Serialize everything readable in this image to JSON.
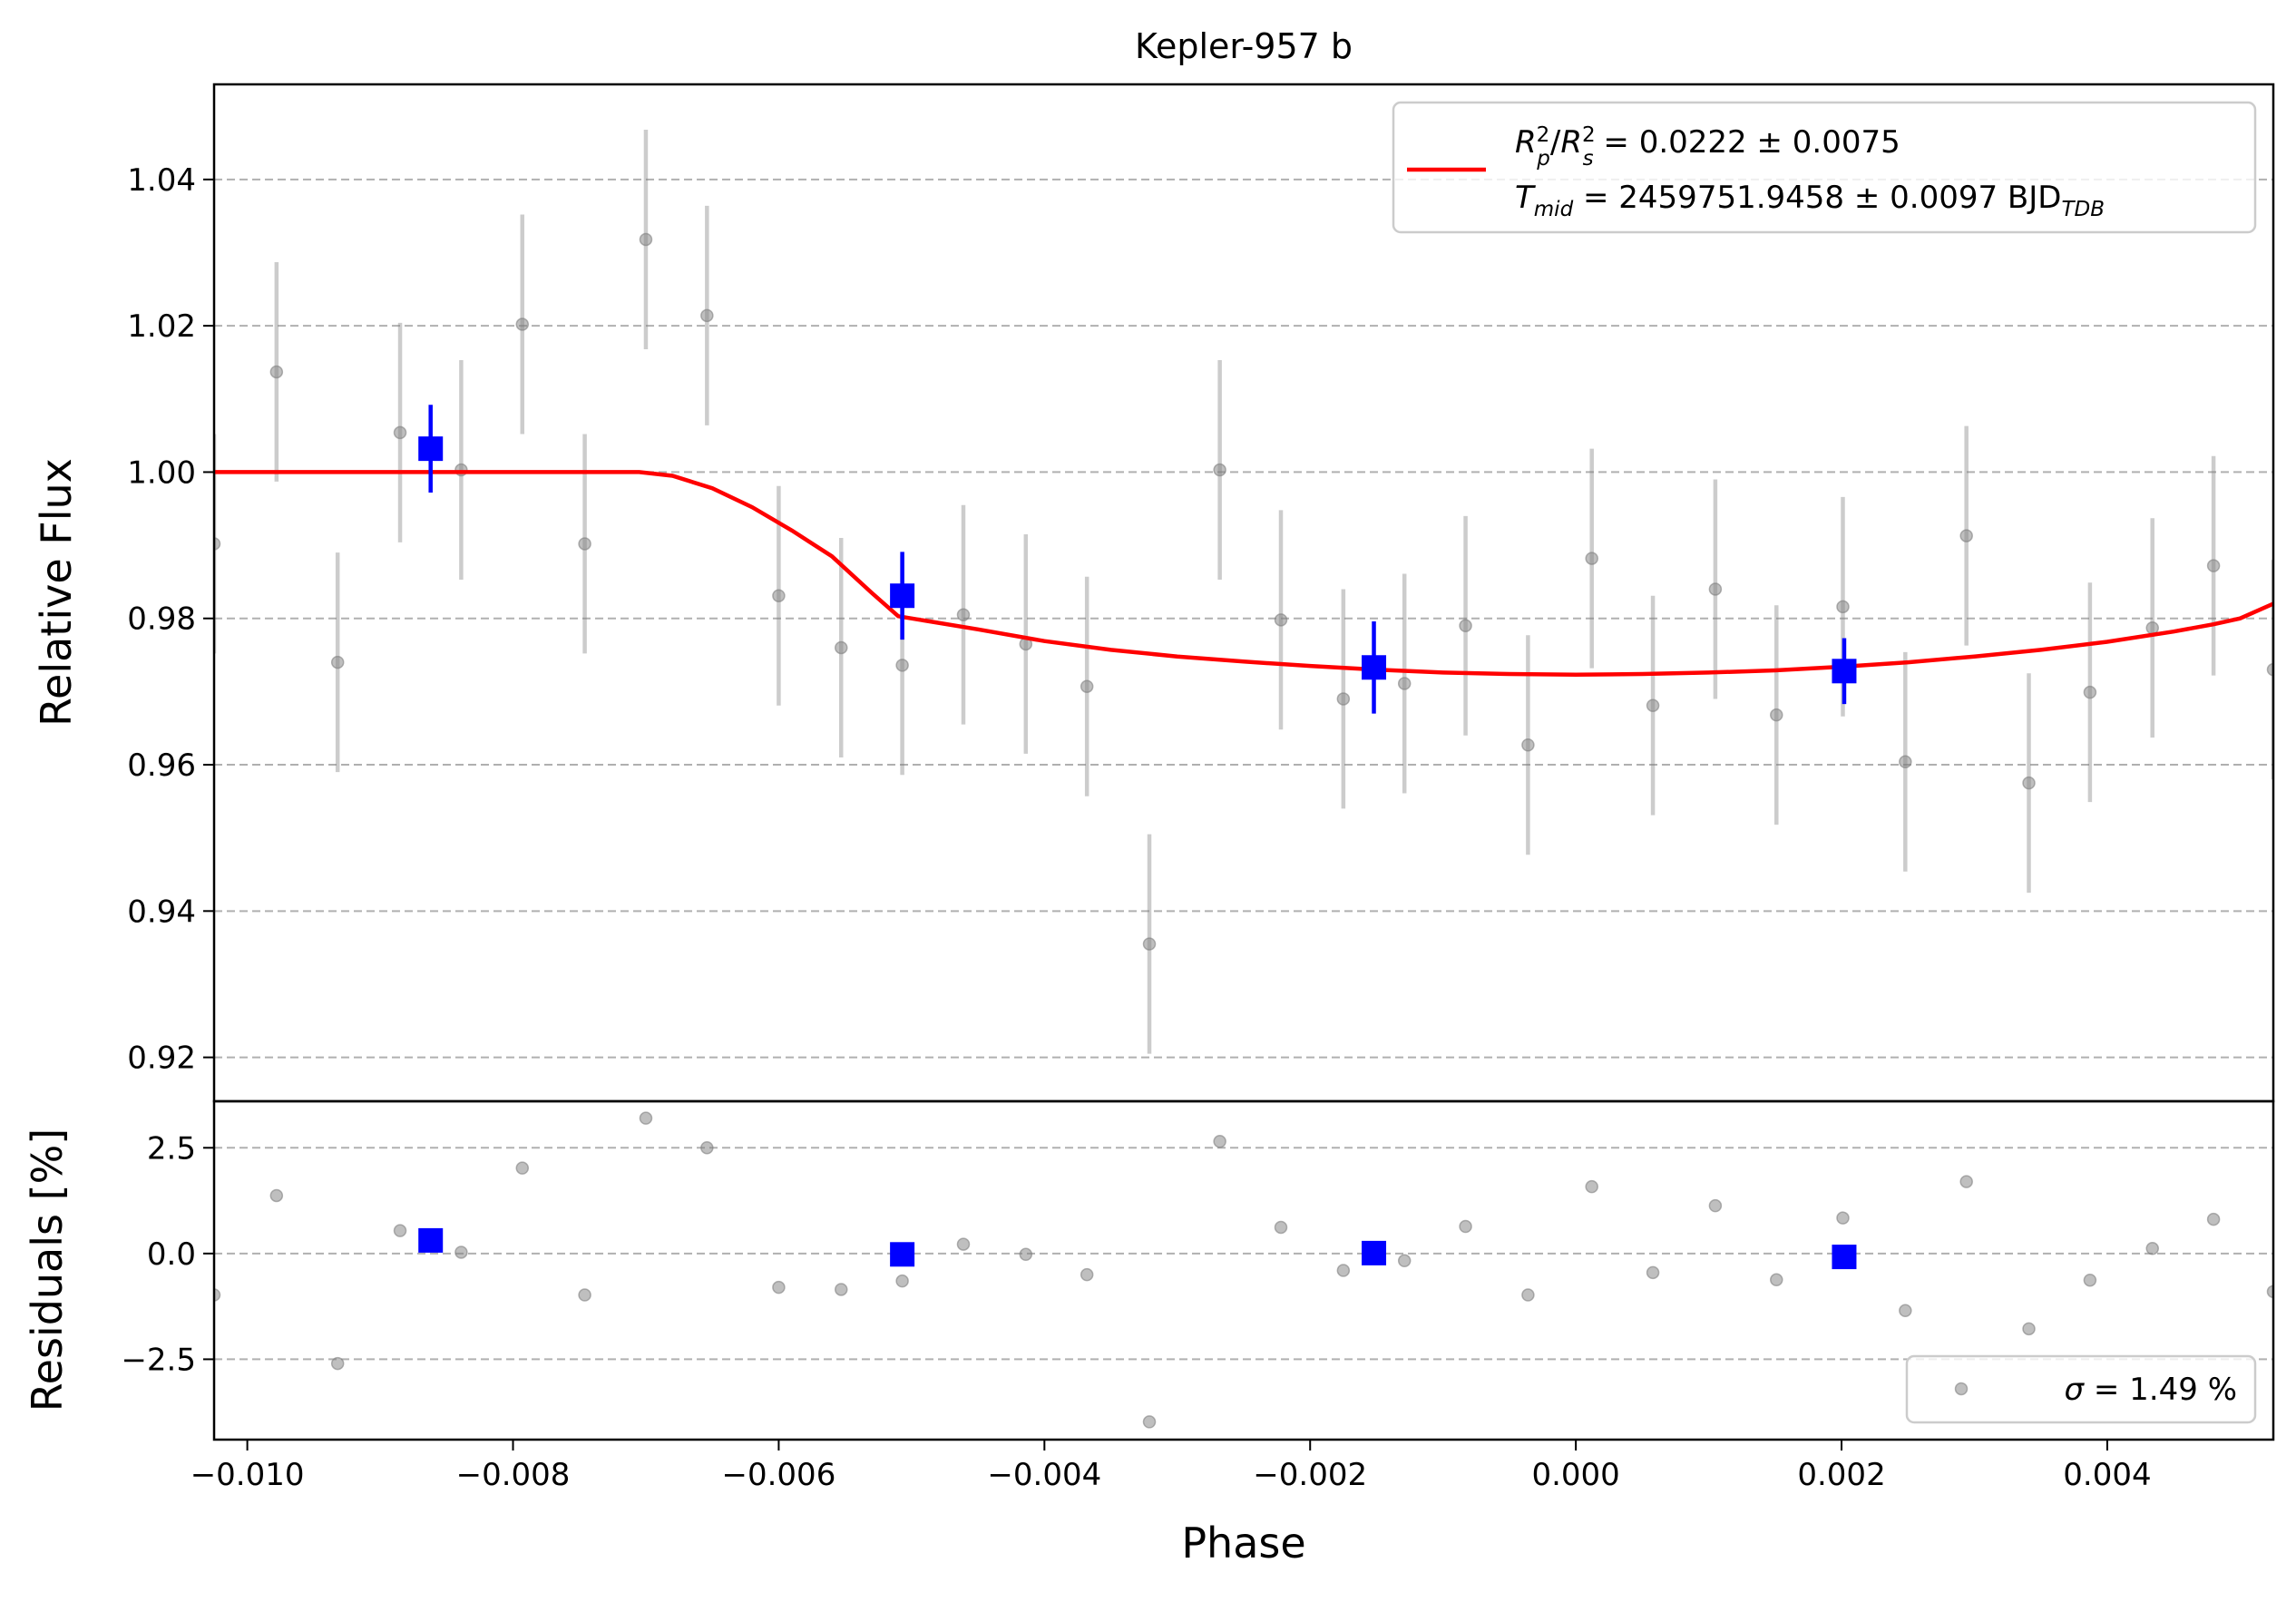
{
  "chart_data": {
    "type": "scatter",
    "title": "Kepler-957 b",
    "xlabel": "Phase",
    "xlim": [
      -0.01025,
      0.00525
    ],
    "x_ticks": [
      -0.01,
      -0.008,
      -0.006,
      -0.004,
      -0.002,
      0.0,
      0.002,
      0.004
    ],
    "x_tick_labels": [
      "−0.010",
      "−0.008",
      "−0.006",
      "−0.004",
      "−0.002",
      "0.000",
      "0.002",
      "0.004"
    ],
    "grid": "horizontal dashed",
    "top_panel": {
      "ylabel": "Relative Flux",
      "ylim": [
        0.914,
        1.053
      ],
      "y_ticks": [
        0.92,
        0.94,
        0.96,
        0.98,
        1.0,
        1.02,
        1.04
      ],
      "y_tick_labels": [
        "0.92",
        "0.94",
        "0.96",
        "0.98",
        "1.00",
        "1.02",
        "1.04"
      ],
      "legend_position": "upper right",
      "legend": {
        "line1": {
          "base1": "R",
          "sup1": "2",
          "sub1": "p",
          "slash": "/",
          "base2": "R",
          "sup2": "2",
          "sub2": "s",
          "rest": " = 0.0222 ± 0.0075"
        },
        "line2": {
          "base": "T",
          "sub": "mid",
          "rest": " = 2459751.9458 ± 0.0097 BJD",
          "unit_sub": "TDB"
        }
      },
      "model_color": "#ff0000",
      "model": {
        "x": [
          -0.01025,
          -0.0085,
          -0.0075,
          -0.00705,
          -0.0068,
          -0.0065,
          -0.0062,
          -0.0059,
          -0.0056,
          -0.0053,
          -0.0051,
          -0.0045,
          -0.004,
          -0.0035,
          -0.003,
          -0.0025,
          -0.002,
          -0.0015,
          -0.001,
          -0.0005,
          0.0,
          0.0005,
          0.001,
          0.0015,
          0.002,
          0.0025,
          0.003,
          0.0035,
          0.004,
          0.0045,
          0.0048,
          0.005,
          0.00525
        ],
        "y": [
          1.0,
          1.0,
          1.0,
          1.0,
          0.9995,
          0.9978,
          0.9952,
          0.992,
          0.9885,
          0.9835,
          0.9803,
          0.9785,
          0.9769,
          0.9757,
          0.9748,
          0.9741,
          0.9735,
          0.973,
          0.9726,
          0.9724,
          0.9723,
          0.9724,
          0.9726,
          0.9729,
          0.9734,
          0.974,
          0.9748,
          0.9757,
          0.9768,
          0.9782,
          0.9792,
          0.98,
          0.982
        ]
      },
      "raw_color": "#808080",
      "raw": [
        {
          "x": -0.01025,
          "y": 0.9902,
          "err": 0.015
        },
        {
          "x": -0.00978,
          "y": 1.0137,
          "err": 0.015
        },
        {
          "x": -0.00932,
          "y": 0.974,
          "err": 0.015
        },
        {
          "x": -0.00885,
          "y": 1.0054,
          "err": 0.015
        },
        {
          "x": -0.00839,
          "y": 1.0003,
          "err": 0.015
        },
        {
          "x": -0.00793,
          "y": 1.0202,
          "err": 0.015
        },
        {
          "x": -0.00746,
          "y": 0.9902,
          "err": 0.015
        },
        {
          "x": -0.007,
          "y": 1.0318,
          "err": 0.015
        },
        {
          "x": -0.00654,
          "y": 1.0214,
          "err": 0.015
        },
        {
          "x": -0.006,
          "y": 0.9831,
          "err": 0.015
        },
        {
          "x": -0.00553,
          "y": 0.976,
          "err": 0.015
        },
        {
          "x": -0.00507,
          "y": 0.9736,
          "err": 0.015
        },
        {
          "x": -0.00461,
          "y": 0.9805,
          "err": 0.015
        },
        {
          "x": -0.00414,
          "y": 0.9765,
          "err": 0.015
        },
        {
          "x": -0.00368,
          "y": 0.9707,
          "err": 0.015
        },
        {
          "x": -0.00321,
          "y": 0.9355,
          "err": 0.015
        },
        {
          "x": -0.00268,
          "y": 1.0003,
          "err": 0.015
        },
        {
          "x": -0.00222,
          "y": 0.9798,
          "err": 0.015
        },
        {
          "x": -0.00175,
          "y": 0.969,
          "err": 0.015
        },
        {
          "x": -0.00129,
          "y": 0.9711,
          "err": 0.015
        },
        {
          "x": -0.00083,
          "y": 0.979,
          "err": 0.015
        },
        {
          "x": -0.00036,
          "y": 0.9627,
          "err": 0.015
        },
        {
          "x": 0.00012,
          "y": 0.9882,
          "err": 0.015
        },
        {
          "x": 0.00058,
          "y": 0.9681,
          "err": 0.015
        },
        {
          "x": 0.00105,
          "y": 0.984,
          "err": 0.015
        },
        {
          "x": 0.00151,
          "y": 0.9668,
          "err": 0.015
        },
        {
          "x": 0.00201,
          "y": 0.9816,
          "err": 0.015
        },
        {
          "x": 0.00248,
          "y": 0.9604,
          "err": 0.015
        },
        {
          "x": 0.00294,
          "y": 0.9913,
          "err": 0.015
        },
        {
          "x": 0.00341,
          "y": 0.9575,
          "err": 0.015
        },
        {
          "x": 0.00387,
          "y": 0.9699,
          "err": 0.015
        },
        {
          "x": 0.00434,
          "y": 0.9787,
          "err": 0.015
        },
        {
          "x": 0.0048,
          "y": 0.9872,
          "err": 0.015
        },
        {
          "x": 0.00525,
          "y": 0.973,
          "err": 0.015
        }
      ],
      "binned_color": "#0000ff",
      "binned": [
        {
          "x": -0.00862,
          "y": 1.0032,
          "err": 0.006
        },
        {
          "x": -0.00507,
          "y": 0.9831,
          "err": 0.006
        },
        {
          "x": -0.00152,
          "y": 0.9733,
          "err": 0.0063
        },
        {
          "x": 0.00202,
          "y": 0.9728,
          "err": 0.0045
        }
      ]
    },
    "bottom_panel": {
      "ylabel": "Residuals [%]",
      "ylim": [
        -4.4,
        3.6
      ],
      "y_ticks": [
        -2.5,
        0.0,
        2.5
      ],
      "y_tick_labels": [
        "−2.5",
        "0.0",
        "2.5"
      ],
      "legend_position": "lower right",
      "legend": {
        "sigma": "σ",
        "rest": " = 1.49 %"
      },
      "raw": [
        {
          "x": -0.01025,
          "y": -0.98
        },
        {
          "x": -0.00978,
          "y": 1.37
        },
        {
          "x": -0.00932,
          "y": -2.6
        },
        {
          "x": -0.00885,
          "y": 0.54
        },
        {
          "x": -0.00839,
          "y": 0.03
        },
        {
          "x": -0.00793,
          "y": 2.02
        },
        {
          "x": -0.00746,
          "y": -0.98
        },
        {
          "x": -0.007,
          "y": 3.2
        },
        {
          "x": -0.00654,
          "y": 2.5
        },
        {
          "x": -0.006,
          "y": -0.8
        },
        {
          "x": -0.00553,
          "y": -0.85
        },
        {
          "x": -0.00507,
          "y": -0.65
        },
        {
          "x": -0.00461,
          "y": 0.22
        },
        {
          "x": -0.00414,
          "y": -0.02
        },
        {
          "x": -0.00368,
          "y": -0.5
        },
        {
          "x": -0.00321,
          "y": -3.98
        },
        {
          "x": -0.00268,
          "y": 2.65
        },
        {
          "x": -0.00222,
          "y": 0.62
        },
        {
          "x": -0.00175,
          "y": -0.4
        },
        {
          "x": -0.00129,
          "y": -0.17
        },
        {
          "x": -0.00083,
          "y": 0.64
        },
        {
          "x": -0.00036,
          "y": -0.98
        },
        {
          "x": 0.00012,
          "y": 1.58
        },
        {
          "x": 0.00058,
          "y": -0.45
        },
        {
          "x": 0.00105,
          "y": 1.13
        },
        {
          "x": 0.00151,
          "y": -0.62
        },
        {
          "x": 0.00201,
          "y": 0.84
        },
        {
          "x": 0.00248,
          "y": -1.35
        },
        {
          "x": 0.00294,
          "y": 1.7
        },
        {
          "x": 0.00341,
          "y": -1.78
        },
        {
          "x": 0.00387,
          "y": -0.63
        },
        {
          "x": 0.00434,
          "y": 0.12
        },
        {
          "x": 0.0048,
          "y": 0.81
        },
        {
          "x": 0.00525,
          "y": -0.9
        }
      ],
      "binned": [
        {
          "x": -0.00862,
          "y": 0.31
        },
        {
          "x": -0.00507,
          "y": -0.02
        },
        {
          "x": -0.00152,
          "y": 0.01
        },
        {
          "x": 0.00202,
          "y": -0.08
        }
      ]
    }
  }
}
